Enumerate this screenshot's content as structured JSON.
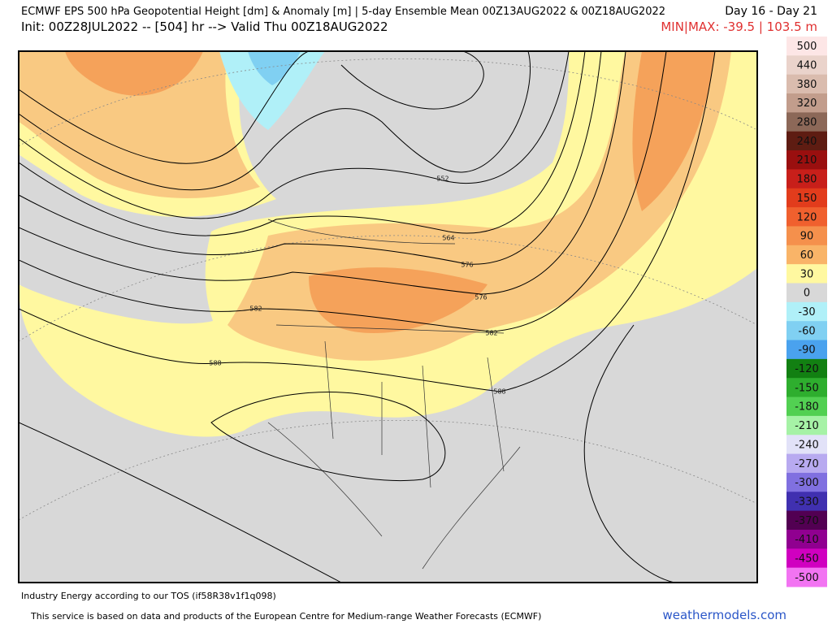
{
  "header": {
    "title": "ECMWF EPS 500 hPa Geopotential Height [dm] & Anomaly [m] | 5-day Ensemble Mean 00Z13AUG2022 & 00Z18AUG2022",
    "period": "Day 16 - Day 21",
    "init": "Init: 00Z28JUL2022 -- [504] hr --> Valid Thu 00Z18AUG2022",
    "minmax": "MIN|MAX: -39.5 | 103.5 m"
  },
  "contour_labels": [
    "552",
    "564",
    "576",
    "576",
    "582",
    "582",
    "588",
    "588"
  ],
  "colorbar": [
    {
      "value": 500,
      "color": "#fde6e6"
    },
    {
      "value": 440,
      "color": "#ead3cb"
    },
    {
      "value": 380,
      "color": "#dabcae"
    },
    {
      "value": 320,
      "color": "#c29d8c"
    },
    {
      "value": 280,
      "color": "#8c6858"
    },
    {
      "value": 240,
      "color": "#5e1c12"
    },
    {
      "value": 210,
      "color": "#9a0f0f"
    },
    {
      "value": 180,
      "color": "#c81f1a"
    },
    {
      "value": 150,
      "color": "#e23c1c"
    },
    {
      "value": 120,
      "color": "#f0602e"
    },
    {
      "value": 90,
      "color": "#f5904c"
    },
    {
      "value": 60,
      "color": "#f9b468"
    },
    {
      "value": 30,
      "color": "#fff8a0"
    },
    {
      "value": 0,
      "color": "#d8d8d8"
    },
    {
      "value": -30,
      "color": "#b0f0f8"
    },
    {
      "value": -60,
      "color": "#80d0f2"
    },
    {
      "value": -90,
      "color": "#4aa2ee"
    },
    {
      "value": -120,
      "color": "#128012"
    },
    {
      "value": -150,
      "color": "#2eae2e"
    },
    {
      "value": -180,
      "color": "#52d052"
    },
    {
      "value": -210,
      "color": "#a6f2a6"
    },
    {
      "value": -240,
      "color": "#e2e2f8"
    },
    {
      "value": -270,
      "color": "#b8aaf0"
    },
    {
      "value": -300,
      "color": "#8070e0"
    },
    {
      "value": -330,
      "color": "#4030b0"
    },
    {
      "value": -370,
      "color": "#520052"
    },
    {
      "value": -410,
      "color": "#900090"
    },
    {
      "value": -450,
      "color": "#d000c0"
    },
    {
      "value": -500,
      "color": "#f274f2"
    }
  ],
  "footer": {
    "tos": "Industry Energy according to our TOS (if58R38v1f1q098)",
    "credit": "This service is based on data and products of the European Centre for Medium-range Weather Forecasts (ECMWF)",
    "site": "weathermodels.com"
  }
}
